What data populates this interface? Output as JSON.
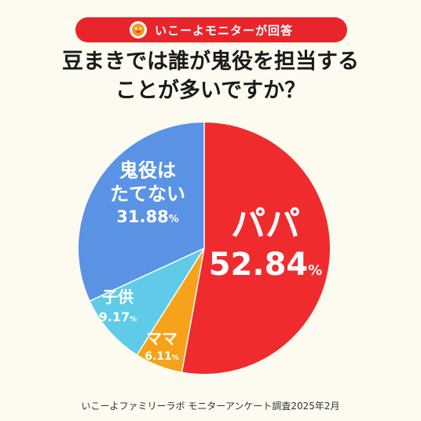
{
  "banner": {
    "text": "いこーよモニターが回答",
    "icon": "smiley-face-icon",
    "color": "#e8252b"
  },
  "title": {
    "line1": "豆まきでは誰が鬼役を担当する",
    "line2": "ことが多いですか？"
  },
  "chart_data": {
    "type": "pie",
    "title": "豆まきでは誰が鬼役を担当することが多いですか？",
    "start": "12 o'clock",
    "direction": "clockwise",
    "legend": "none (labels inside slices)",
    "slices": [
      {
        "label": "パパ",
        "value": 52.84,
        "display": "52.84",
        "unit": "%",
        "color": "#ef2b2e"
      },
      {
        "label": "ママ",
        "value": 6.11,
        "display": "6.11",
        "unit": "%",
        "color": "#f7a21b"
      },
      {
        "label": "子供",
        "value": 9.17,
        "display": "9.17",
        "unit": "%",
        "color": "#5fcbe9"
      },
      {
        "label": "鬼役はたてない",
        "label_lines": [
          "鬼役は",
          "たてない"
        ],
        "value": 31.88,
        "display": "31.88",
        "unit": "%",
        "color": "#5a93e4"
      }
    ]
  },
  "footer": {
    "text": "いこーよファミリーラボ モニターアンケート調査2025年2月"
  }
}
